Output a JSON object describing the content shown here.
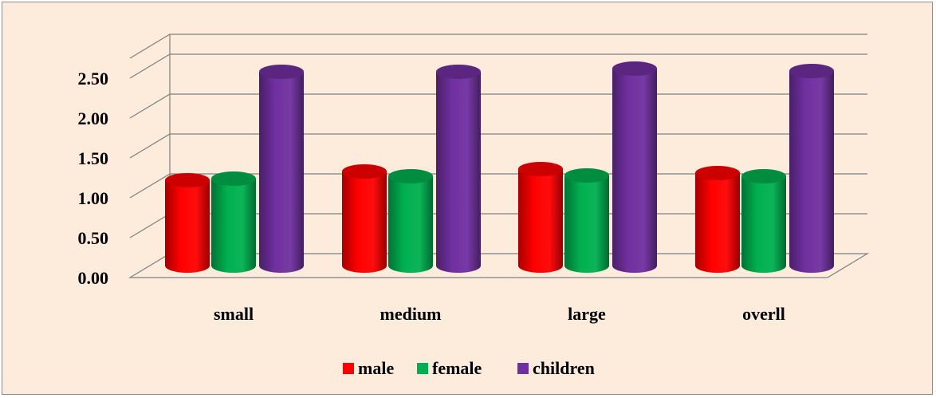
{
  "chart_data": {
    "type": "bar",
    "categories": [
      "small",
      "medium",
      "large",
      "overll"
    ],
    "series": [
      {
        "name": "male",
        "color": "#ff0000",
        "values": [
          1.07,
          1.18,
          1.21,
          1.16
        ]
      },
      {
        "name": "female",
        "color": "#00b050",
        "values": [
          1.09,
          1.12,
          1.13,
          1.12
        ]
      },
      {
        "name": "children",
        "color": "#7030a0",
        "values": [
          2.43,
          2.43,
          2.47,
          2.44
        ]
      }
    ],
    "ylim": [
      0,
      2.5
    ],
    "y_ticks": [
      "0.00",
      "0.50",
      "1.00",
      "1.50",
      "2.00",
      "2.50"
    ],
    "title": "",
    "xlabel": "",
    "ylabel": "",
    "grid": true,
    "legend_position": "bottom",
    "style": "3d-cylinder"
  }
}
